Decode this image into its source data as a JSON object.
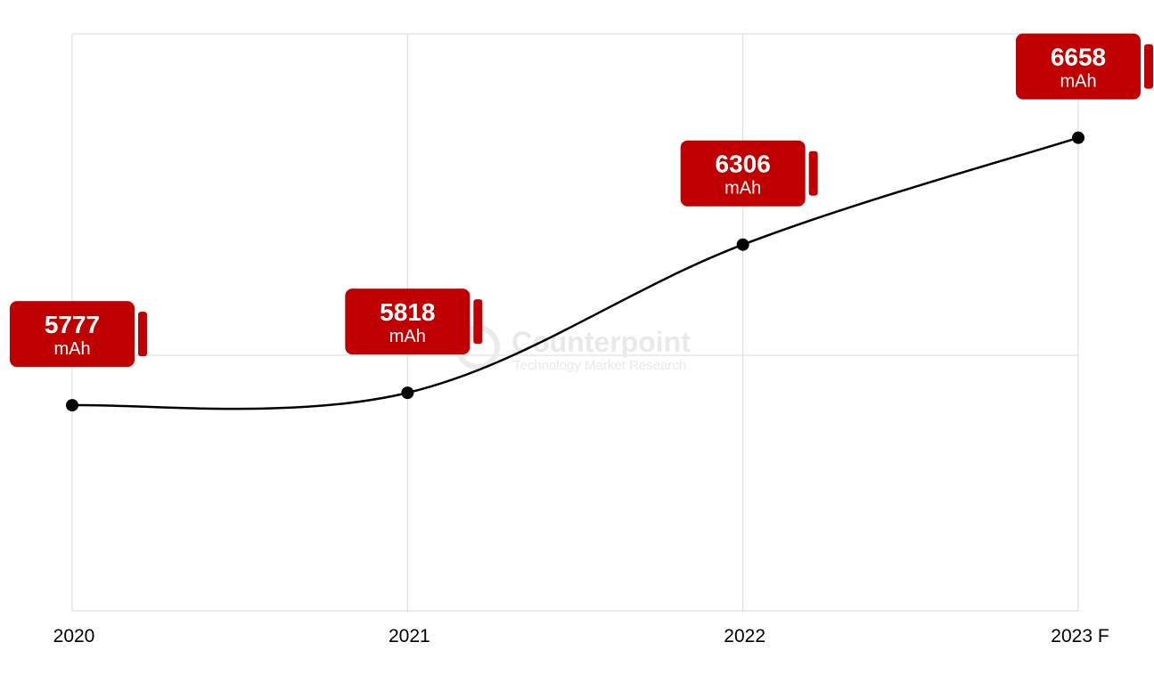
{
  "chart_data": {
    "type": "line",
    "categories": [
      "2020",
      "2021",
      "2022",
      "2023 F"
    ],
    "values": [
      5777,
      5818,
      6306,
      6658
    ],
    "unit": "mAh",
    "title": "",
    "xlabel": "",
    "ylabel": "",
    "ylim": [
      5100,
      7000
    ],
    "grid": true,
    "legend": "none",
    "colors": {
      "line": "#000000",
      "badge": "#c00000",
      "grid": "#d9d9d9",
      "watermark": "#e9e9e9"
    }
  },
  "watermark": {
    "brand": "Counterpoint",
    "tagline": "Technology Market Research",
    "icon": "counterpoint-logo-icon"
  }
}
